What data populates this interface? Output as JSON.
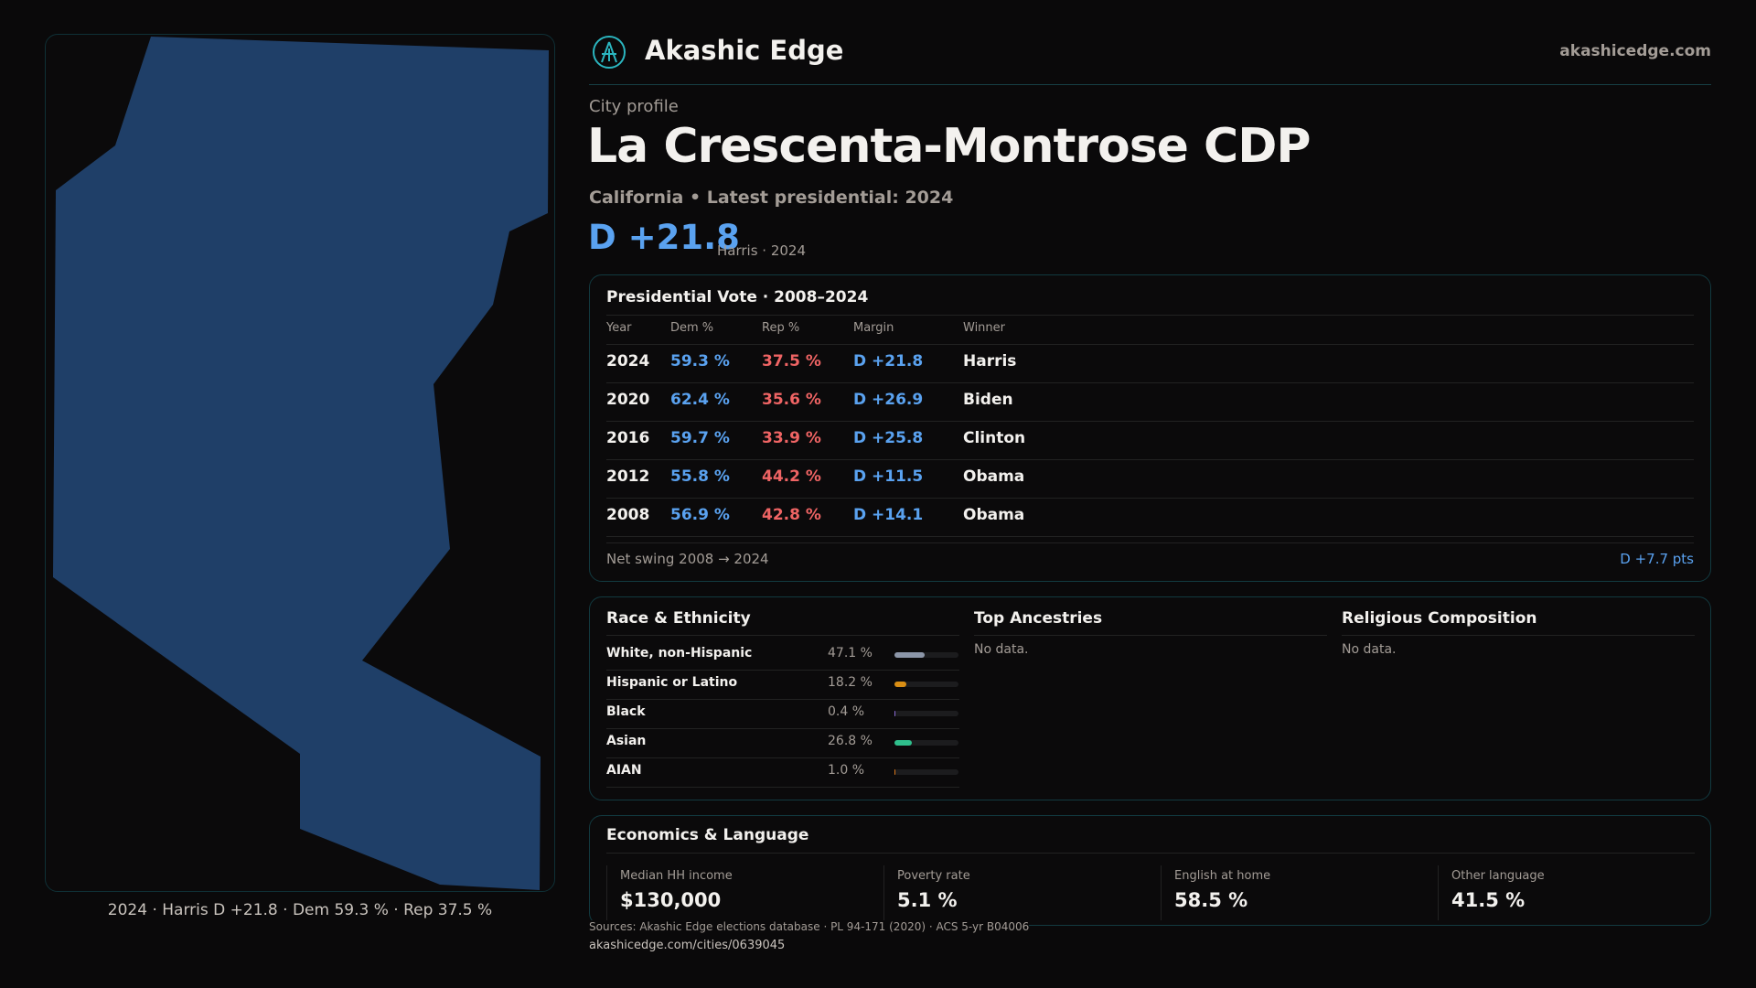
{
  "brand": {
    "name": "Akashic Edge",
    "site": "akashicedge.com"
  },
  "profile": {
    "kicker": "City profile",
    "title": "La Crescenta-Montrose CDP",
    "subtitle": "California • Latest presidential: 2024",
    "margin": "D +21.8",
    "margin_note": "Harris · 2024"
  },
  "map": {
    "caption": "2024 · Harris D +21.8 · Dem 59.3 % · Rep 37.5 %",
    "fill": "#1f3f68"
  },
  "vote": {
    "title": "Presidential Vote · 2008–2024",
    "headers": [
      "Year",
      "Dem %",
      "Rep %",
      "Margin",
      "Winner"
    ],
    "rows": [
      [
        "2024",
        "59.3 %",
        "37.5 %",
        "D +21.8",
        "Harris"
      ],
      [
        "2020",
        "62.4 %",
        "35.6 %",
        "D +26.9",
        "Biden"
      ],
      [
        "2016",
        "59.7 %",
        "33.9 %",
        "D +25.8",
        "Clinton"
      ],
      [
        "2012",
        "55.8 %",
        "44.2 %",
        "D +11.5",
        "Obama"
      ],
      [
        "2008",
        "56.9 %",
        "42.8 %",
        "D +14.1",
        "Obama"
      ]
    ],
    "swing_label": "Net swing 2008 → 2024",
    "swing_value": "D +7.7 pts"
  },
  "race": {
    "title": "Race & Ethnicity",
    "rows": [
      {
        "label": "White, non-Hispanic",
        "pct": "47.1 %",
        "value": 47.1,
        "color": "#8c96a8"
      },
      {
        "label": "Hispanic or Latino",
        "pct": "18.2 %",
        "value": 18.2,
        "color": "#d98e14"
      },
      {
        "label": "Black",
        "pct": "0.4 %",
        "value": 0.4,
        "color": "#8a6bd6"
      },
      {
        "label": "Asian",
        "pct": "26.8 %",
        "value": 26.8,
        "color": "#2fbf8c"
      },
      {
        "label": "AIAN",
        "pct": "1.0 %",
        "value": 1.0,
        "color": "#d9771a"
      }
    ]
  },
  "ancestry": {
    "title": "Top Ancestries",
    "empty": "No data."
  },
  "religion": {
    "title": "Religious Composition",
    "empty": "No data."
  },
  "econ": {
    "title": "Economics & Language",
    "stats": [
      {
        "label": "Median HH income",
        "value": "$130,000"
      },
      {
        "label": "Poverty rate",
        "value": "5.1 %"
      },
      {
        "label": "English at home",
        "value": "58.5 %"
      },
      {
        "label": "Other language",
        "value": "41.5 %"
      }
    ]
  },
  "footer": {
    "sources": "Sources: Akashic Edge elections database · PL 94-171 (2020) · ACS 5-yr B04006",
    "url": "akashicedge.com/cities/0639045"
  }
}
